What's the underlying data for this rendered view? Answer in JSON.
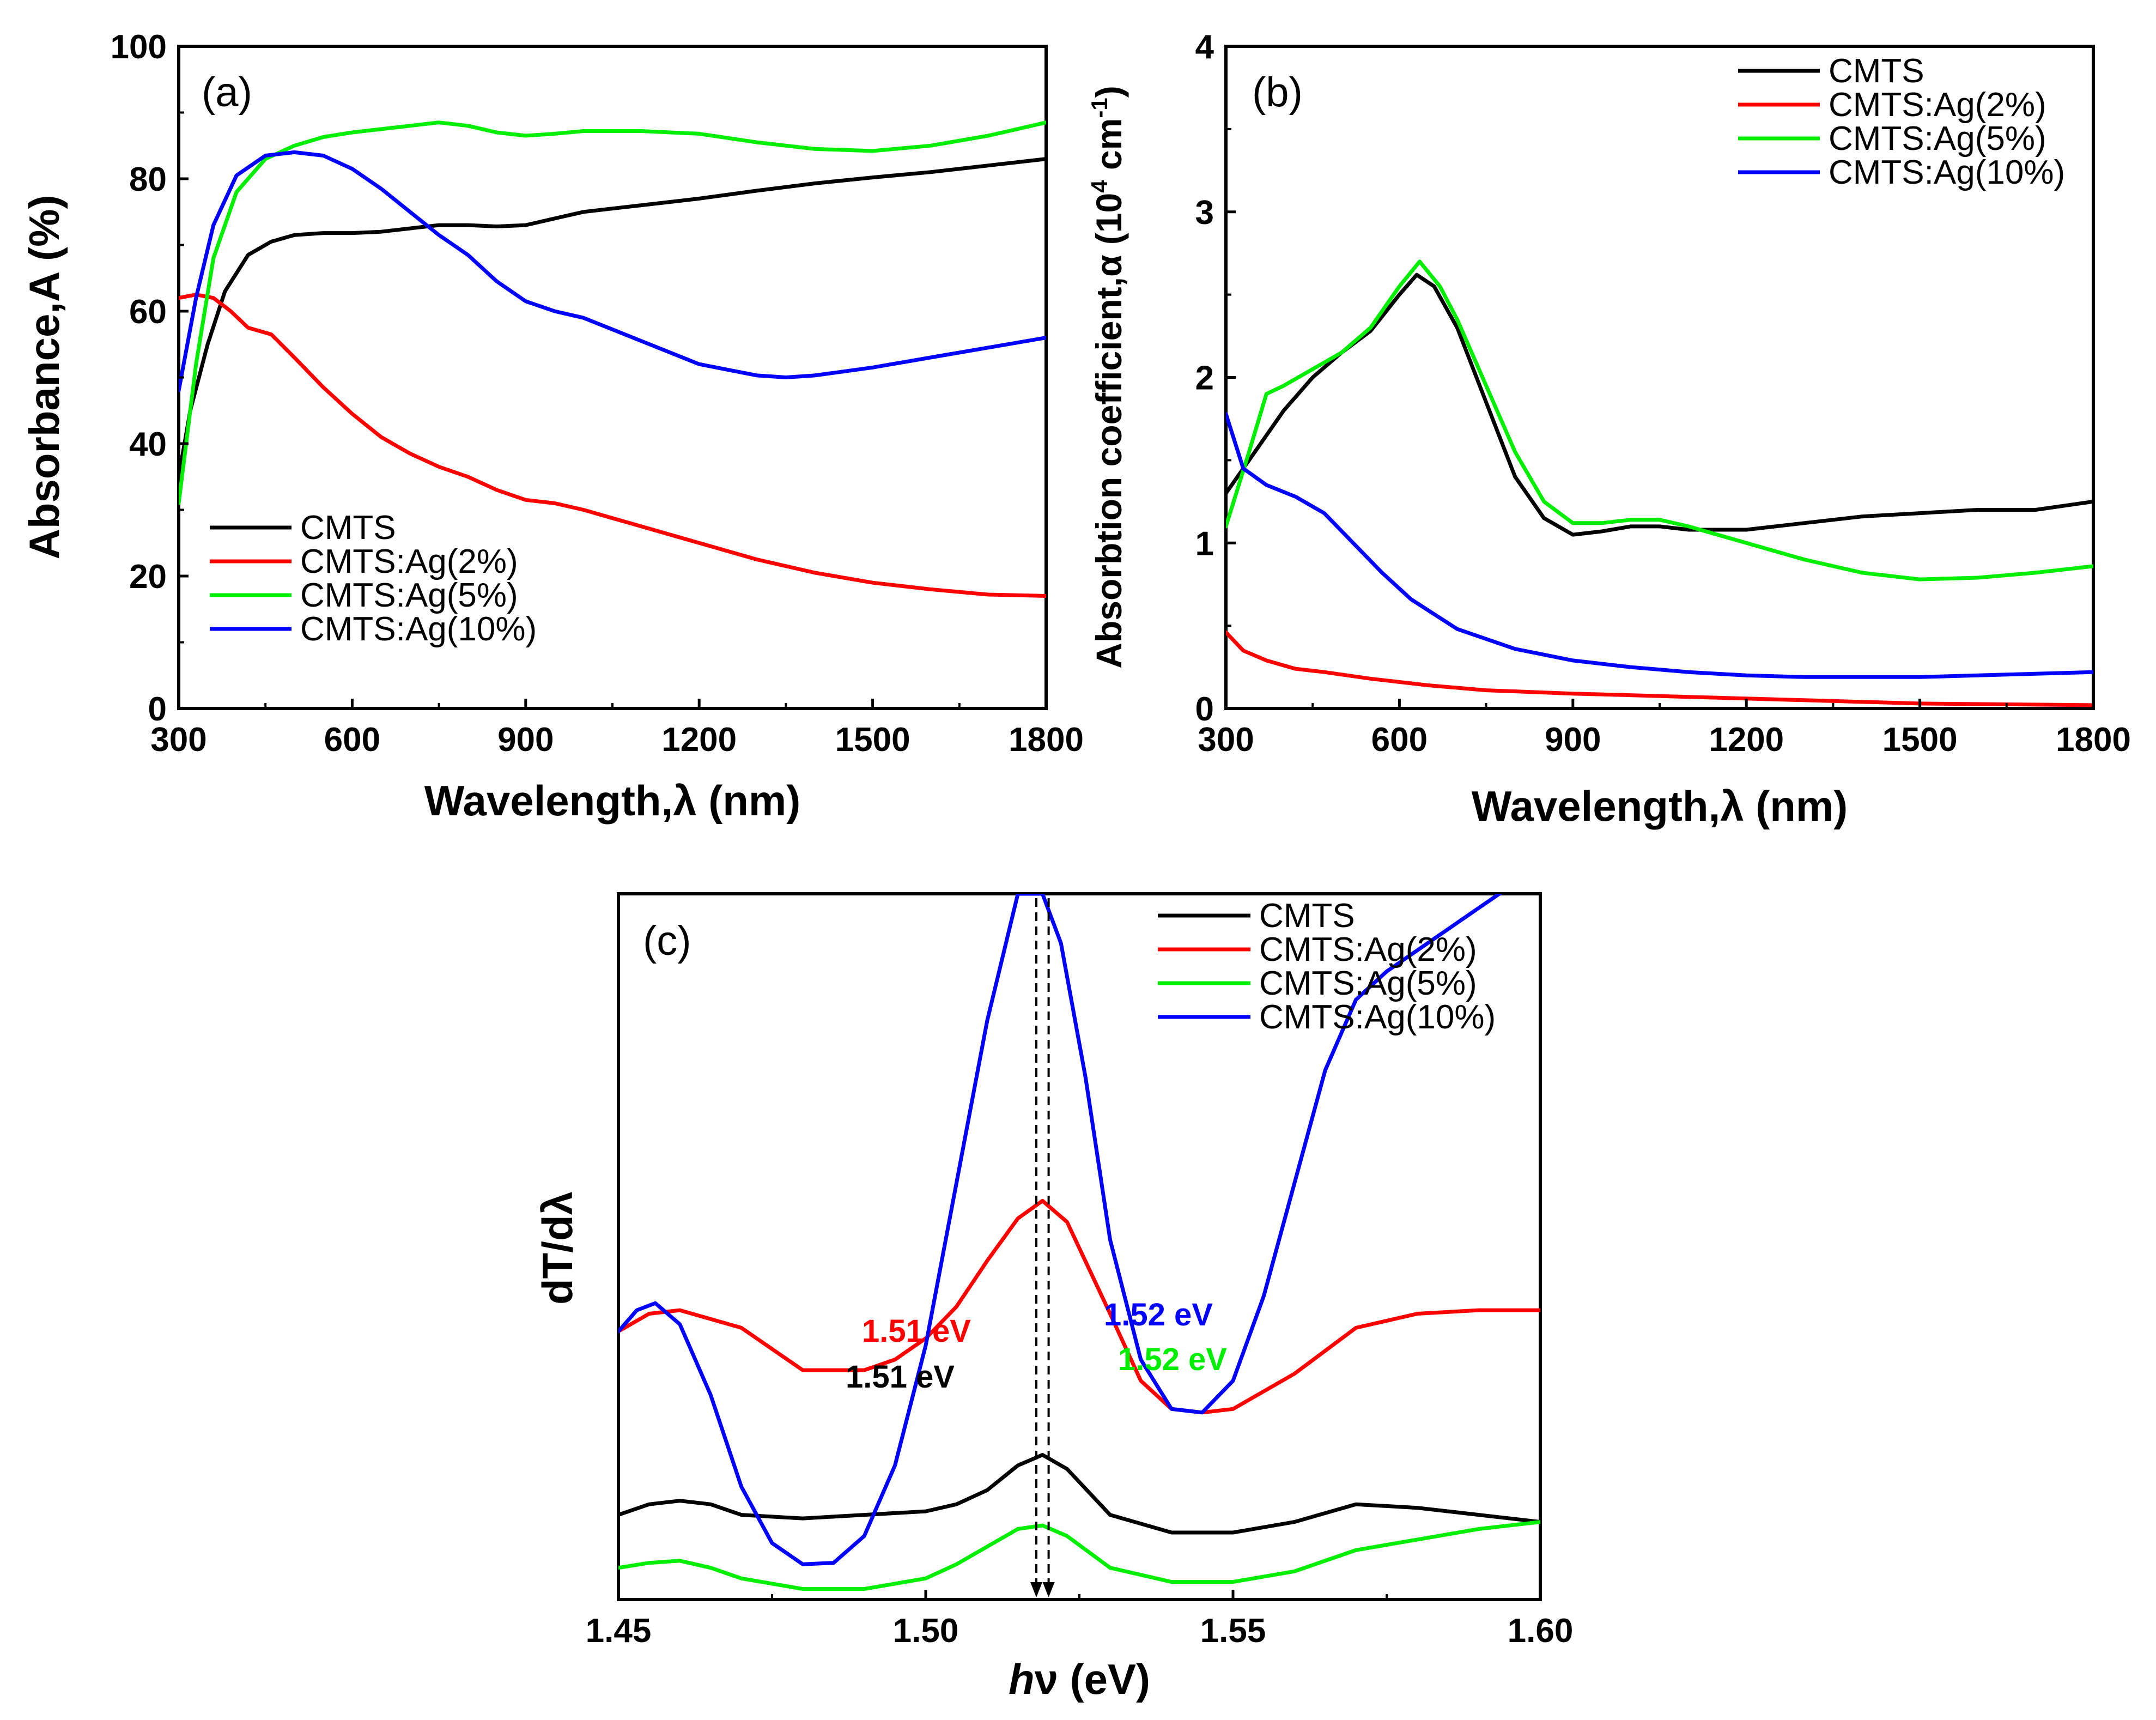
{
  "chart_data": [
    {
      "type": "line",
      "panel_label": "(a)",
      "xlabel": "Wavelength,λ (nm)",
      "ylabel": "Absorbance,A (%)",
      "xlim": [
        300,
        1800
      ],
      "ylim": [
        0,
        100
      ],
      "xticks": [
        "300",
        "600",
        "900",
        "1200",
        "1500",
        "1800"
      ],
      "yticks": [
        "0",
        "20",
        "40",
        "60",
        "80",
        "100"
      ],
      "legend_position": "bottom-left",
      "series": [
        {
          "name": "CMTS",
          "color": "#000000",
          "x": [
            300,
            320,
            350,
            380,
            420,
            460,
            500,
            550,
            600,
            650,
            700,
            750,
            800,
            850,
            900,
            950,
            1000,
            1100,
            1200,
            1300,
            1400,
            1500,
            1600,
            1700,
            1800
          ],
          "y": [
            35,
            45,
            55,
            63,
            68.5,
            70.5,
            71.5,
            71.8,
            71.8,
            72,
            72.5,
            73,
            73,
            72.8,
            73,
            74,
            75,
            76,
            77,
            78.2,
            79.3,
            80.2,
            81,
            82,
            83
          ]
        },
        {
          "name": "CMTS:Ag(2%)",
          "color": "#ff0000",
          "x": [
            300,
            330,
            360,
            390,
            420,
            460,
            500,
            550,
            600,
            650,
            700,
            750,
            800,
            850,
            900,
            950,
            1000,
            1100,
            1200,
            1300,
            1400,
            1500,
            1600,
            1700,
            1800
          ],
          "y": [
            62,
            62.5,
            62,
            60,
            57.5,
            56.5,
            53,
            48.5,
            44.5,
            41,
            38.5,
            36.5,
            35,
            33,
            31.5,
            31,
            30,
            27.5,
            25,
            22.5,
            20.5,
            19,
            18,
            17.2,
            17
          ]
        },
        {
          "name": "CMTS:Ag(5%)",
          "color": "#00ee00",
          "x": [
            300,
            330,
            360,
            400,
            450,
            500,
            550,
            600,
            650,
            700,
            750,
            800,
            850,
            900,
            950,
            1000,
            1100,
            1200,
            1300,
            1400,
            1500,
            1600,
            1700,
            1800
          ],
          "y": [
            31,
            52,
            68,
            78,
            83,
            85,
            86.3,
            87,
            87.5,
            88,
            88.5,
            88,
            87,
            86.5,
            86.8,
            87.2,
            87.2,
            86.8,
            85.5,
            84.5,
            84.2,
            85,
            86.5,
            88.5
          ]
        },
        {
          "name": "CMTS:Ag(10%)",
          "color": "#0000ff",
          "x": [
            300,
            330,
            360,
            400,
            450,
            500,
            550,
            600,
            650,
            700,
            750,
            800,
            850,
            900,
            950,
            1000,
            1100,
            1200,
            1300,
            1350,
            1400,
            1500,
            1600,
            1700,
            1800
          ],
          "y": [
            48,
            62,
            73,
            80.5,
            83.5,
            84,
            83.5,
            81.5,
            78.5,
            75,
            71.5,
            68.5,
            64.5,
            61.5,
            60,
            59,
            55.5,
            52,
            50.3,
            50,
            50.3,
            51.5,
            53,
            54.5,
            56
          ]
        }
      ]
    },
    {
      "type": "line",
      "panel_label": "(b)",
      "xlabel": "Wavelength,λ (nm)",
      "ylabel": "Absorbtion coefficient,α (10",
      "ylabel_sup1": "4",
      "ylabel_mid": " cm",
      "ylabel_sup2": "-1",
      "ylabel_end": ")",
      "xlim": [
        300,
        1800
      ],
      "ylim": [
        0,
        4
      ],
      "xticks": [
        "300",
        "600",
        "900",
        "1200",
        "1500",
        "1800"
      ],
      "yticks": [
        "0",
        "1",
        "2",
        "3",
        "4"
      ],
      "legend_position": "top-right",
      "series": [
        {
          "name": "CMTS",
          "color": "#000000",
          "x": [
            300,
            350,
            400,
            450,
            500,
            550,
            600,
            630,
            660,
            700,
            750,
            800,
            850,
            900,
            950,
            1000,
            1050,
            1100,
            1200,
            1300,
            1400,
            1500,
            1600,
            1700,
            1800
          ],
          "y": [
            1.3,
            1.55,
            1.8,
            2.0,
            2.15,
            2.28,
            2.5,
            2.62,
            2.55,
            2.3,
            1.85,
            1.4,
            1.15,
            1.05,
            1.07,
            1.1,
            1.1,
            1.08,
            1.08,
            1.12,
            1.16,
            1.18,
            1.2,
            1.2,
            1.25
          ]
        },
        {
          "name": "CMTS:Ag(2%)",
          "color": "#ff0000",
          "x": [
            300,
            330,
            370,
            420,
            470,
            550,
            650,
            750,
            900,
            1100,
            1300,
            1500,
            1800
          ],
          "y": [
            0.46,
            0.35,
            0.29,
            0.24,
            0.22,
            0.18,
            0.14,
            0.11,
            0.09,
            0.07,
            0.05,
            0.03,
            0.02
          ]
        },
        {
          "name": "CMTS:Ag(5%)",
          "color": "#00ee00",
          "x": [
            300,
            340,
            370,
            400,
            450,
            500,
            550,
            600,
            635,
            670,
            700,
            750,
            800,
            850,
            900,
            950,
            1000,
            1050,
            1100,
            1200,
            1300,
            1400,
            1500,
            1600,
            1700,
            1800
          ],
          "y": [
            1.1,
            1.55,
            1.9,
            1.95,
            2.05,
            2.15,
            2.3,
            2.55,
            2.7,
            2.55,
            2.35,
            1.95,
            1.55,
            1.25,
            1.12,
            1.12,
            1.14,
            1.14,
            1.1,
            1.0,
            0.9,
            0.82,
            0.78,
            0.79,
            0.82,
            0.86
          ]
        },
        {
          "name": "CMTS:Ag(10%)",
          "color": "#0000ff",
          "x": [
            300,
            330,
            370,
            420,
            470,
            520,
            570,
            620,
            700,
            800,
            900,
            1000,
            1100,
            1200,
            1300,
            1400,
            1500,
            1600,
            1700,
            1800
          ],
          "y": [
            1.78,
            1.45,
            1.35,
            1.28,
            1.18,
            1.0,
            0.82,
            0.66,
            0.48,
            0.36,
            0.29,
            0.25,
            0.22,
            0.2,
            0.19,
            0.19,
            0.19,
            0.2,
            0.21,
            0.22
          ]
        }
      ]
    },
    {
      "type": "line",
      "panel_label": "(c)",
      "xlabel_italic": "h",
      "xlabel_rest": "ν (eV)",
      "ylabel": "dT/dλ",
      "xlim": [
        1.45,
        1.6
      ],
      "ylim": [
        0,
        100
      ],
      "y_arbitrary_units": true,
      "xticks": [
        "1.45",
        "1.50",
        "1.55",
        "1.60"
      ],
      "legend_position": "top-right",
      "series": [
        {
          "name": "CMTS",
          "color": "#000000",
          "x": [
            1.45,
            1.455,
            1.46,
            1.465,
            1.47,
            1.48,
            1.49,
            1.5,
            1.505,
            1.51,
            1.515,
            1.519,
            1.523,
            1.53,
            1.54,
            1.55,
            1.56,
            1.57,
            1.58,
            1.59,
            1.6
          ],
          "y": [
            12,
            13.5,
            14,
            13.5,
            12,
            11.5,
            12,
            12.5,
            13.5,
            15.5,
            19,
            20.5,
            18.5,
            12,
            9.5,
            9.5,
            11,
            13.5,
            13,
            12,
            11
          ]
        },
        {
          "name": "CMTS:Ag(2%)",
          "color": "#ff0000",
          "x": [
            1.45,
            1.455,
            1.46,
            1.47,
            1.48,
            1.49,
            1.495,
            1.5,
            1.505,
            1.51,
            1.515,
            1.519,
            1.523,
            1.53,
            1.535,
            1.54,
            1.545,
            1.55,
            1.56,
            1.57,
            1.58,
            1.59,
            1.6
          ],
          "y": [
            38,
            40.5,
            41,
            38.5,
            32.5,
            32.5,
            34,
            37,
            41.5,
            48,
            54,
            56.5,
            53.5,
            40.5,
            31,
            27,
            26.5,
            27,
            32,
            38.5,
            40.5,
            41,
            41
          ]
        },
        {
          "name": "CMTS:Ag(5%)",
          "color": "#00ee00",
          "x": [
            1.45,
            1.455,
            1.46,
            1.465,
            1.47,
            1.48,
            1.49,
            1.5,
            1.505,
            1.51,
            1.515,
            1.519,
            1.523,
            1.53,
            1.54,
            1.55,
            1.56,
            1.57,
            1.58,
            1.59,
            1.6
          ],
          "y": [
            4.5,
            5.2,
            5.5,
            4.5,
            3,
            1.5,
            1.5,
            3,
            5,
            7.5,
            10,
            10.5,
            9,
            4.5,
            2.5,
            2.5,
            4,
            7,
            8.5,
            10,
            11
          ]
        },
        {
          "name": "CMTS:Ag(10%)",
          "color": "#0000ff",
          "x": [
            1.45,
            1.453,
            1.456,
            1.46,
            1.465,
            1.47,
            1.475,
            1.48,
            1.485,
            1.49,
            1.495,
            1.5,
            1.505,
            1.51,
            1.515,
            1.519,
            1.522,
            1.526,
            1.53,
            1.535,
            1.54,
            1.545,
            1.55,
            1.555,
            1.56,
            1.565,
            1.57,
            1.575,
            1.58,
            1.59,
            1.6
          ],
          "y": [
            38,
            41,
            42,
            39,
            29,
            16,
            8,
            5,
            5.2,
            9,
            19,
            36,
            59,
            82,
            100,
            100,
            93,
            74,
            51,
            34,
            27,
            26.5,
            31,
            43,
            59,
            75,
            85,
            89,
            92,
            98,
            104
          ]
        }
      ],
      "annotations": [
        {
          "text": "1.51 eV",
          "color": "#ff0000"
        },
        {
          "text": "1.51 eV",
          "color": "#000000"
        },
        {
          "text": "1.52 eV",
          "color": "#0000ff"
        },
        {
          "text": "1.52 eV",
          "color": "#00ee00"
        }
      ],
      "marker_lines_x": [
        1.518,
        1.52
      ]
    }
  ]
}
